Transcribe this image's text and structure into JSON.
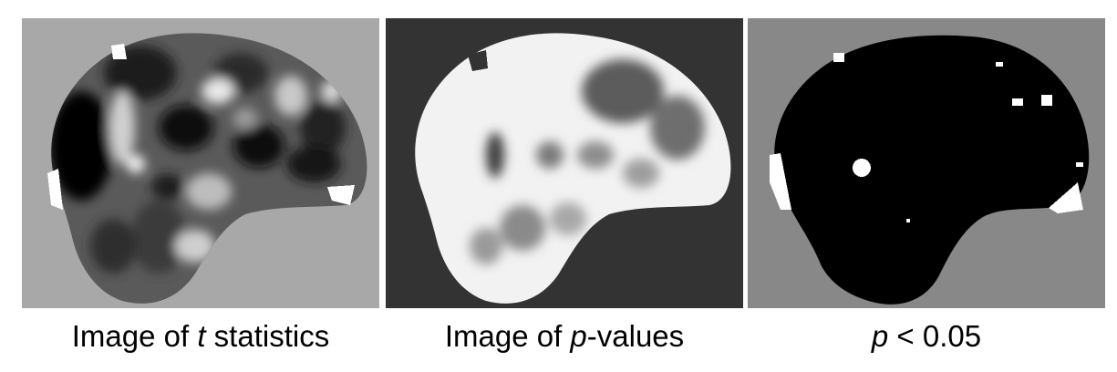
{
  "colors": {
    "panel1_background": "#a8a8a8",
    "panel2_background": "#333333",
    "panel3_background": "#888888",
    "brain_black": "#000000",
    "brain_white": "#ffffff"
  },
  "panels": [
    {
      "caption_before": "Image of ",
      "caption_italic": "t",
      "caption_after": " statistics"
    },
    {
      "caption_before": "Image of ",
      "caption_italic": "p",
      "caption_after": "-values"
    },
    {
      "caption_before": "",
      "caption_italic": "p",
      "caption_after": " < 0.05"
    }
  ]
}
